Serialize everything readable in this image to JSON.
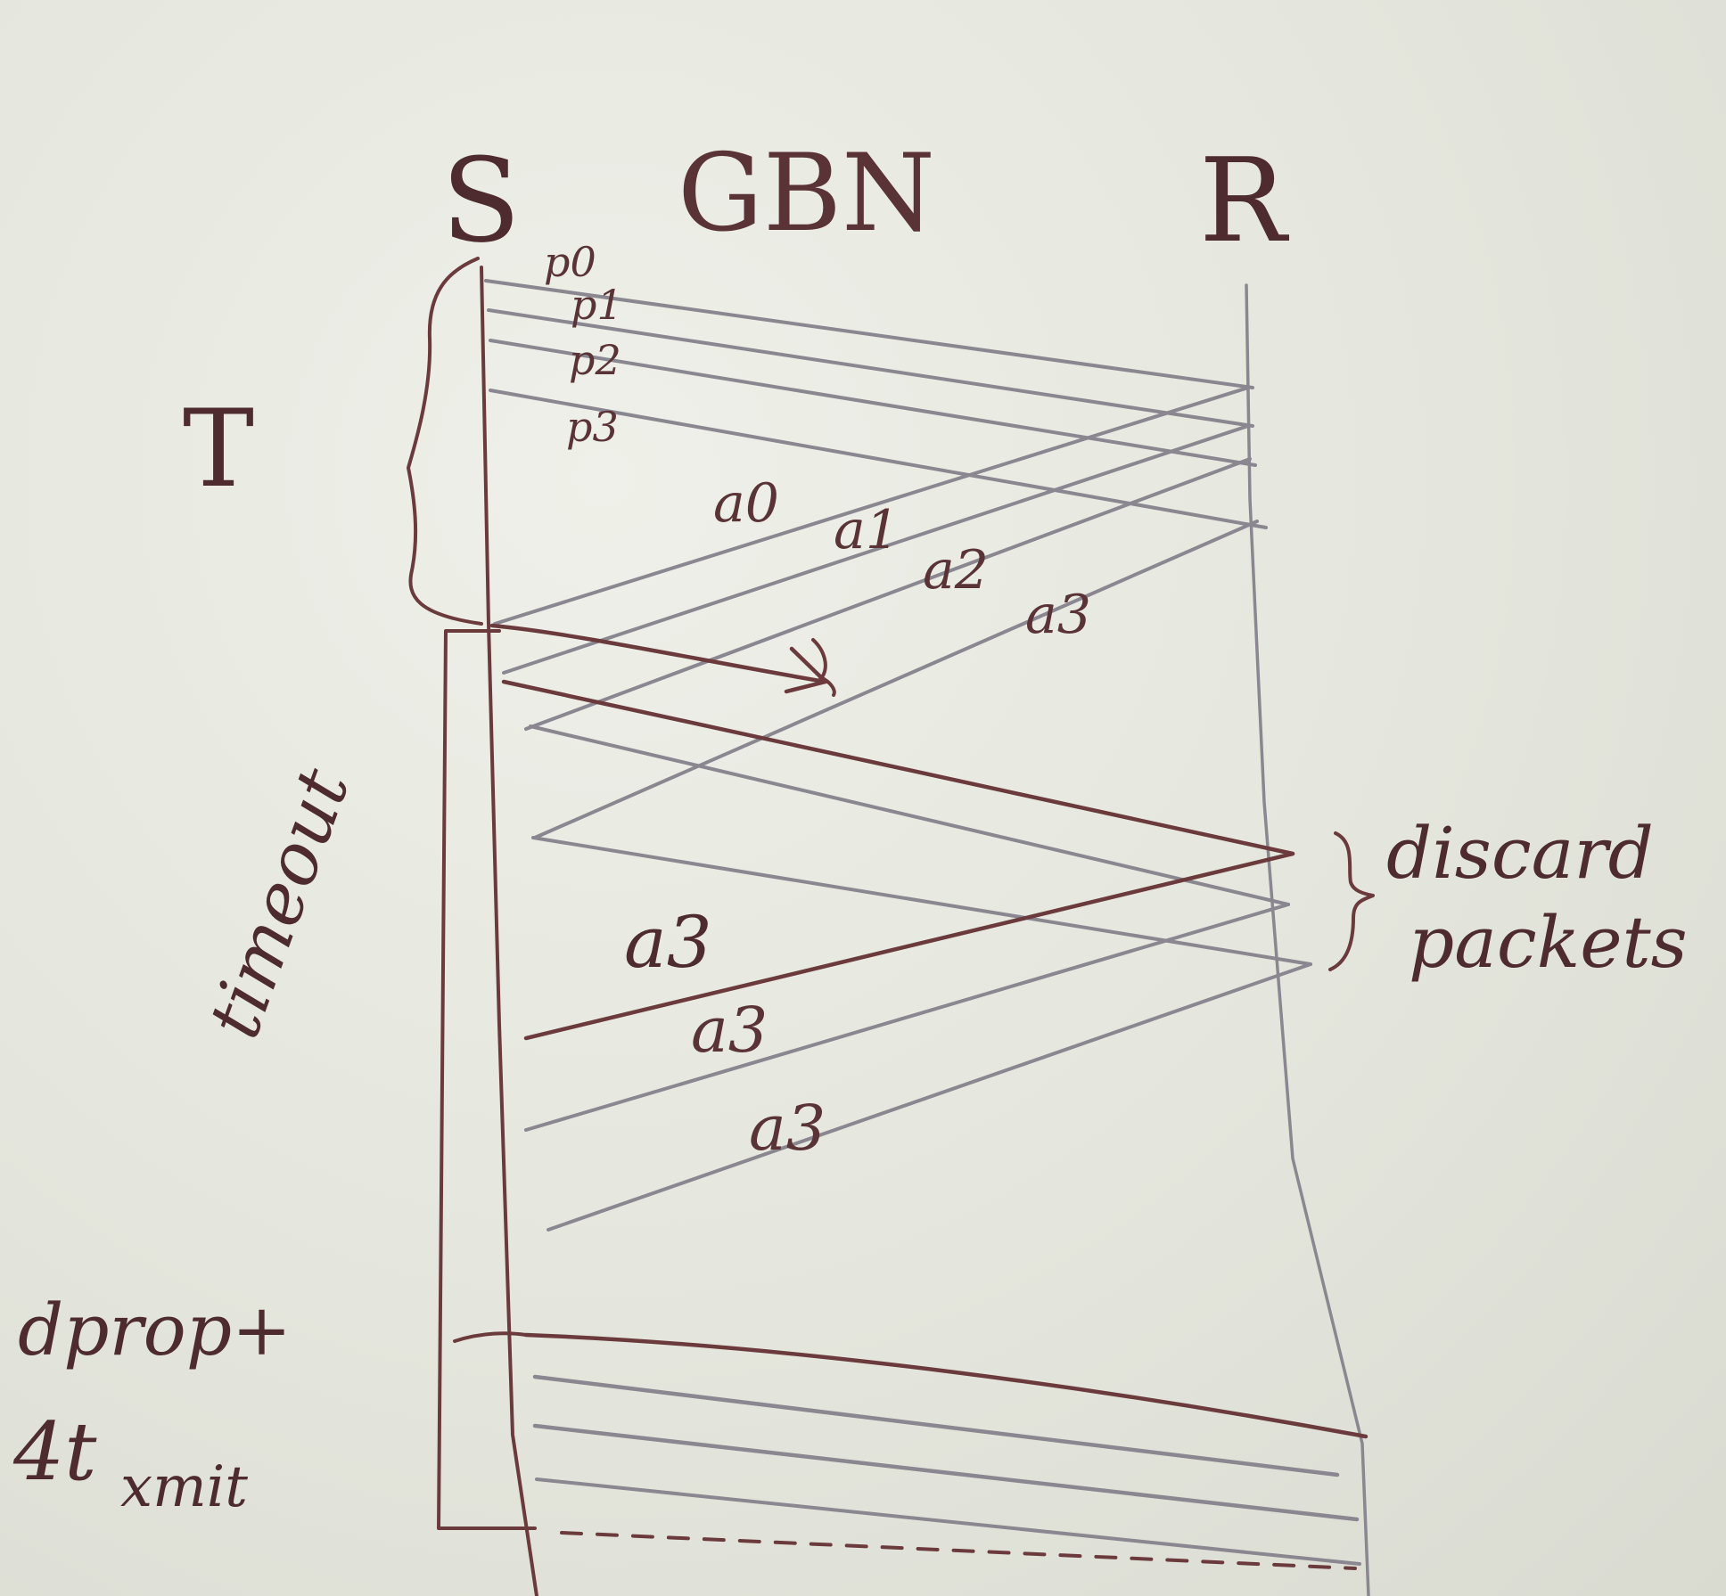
{
  "diagram": {
    "title": "GBN",
    "sender_label": "S",
    "receiver_label": "R",
    "interval_label": "T",
    "timeout_label": "timeout",
    "packets": [
      "p0",
      "p1",
      "p2",
      "p3"
    ],
    "acks": [
      "a0",
      "a1",
      "a2",
      "a3"
    ],
    "repeated_acks": [
      "a3",
      "a3",
      "a3"
    ],
    "discard_label_line1": "discard",
    "discard_label_line2": "packets",
    "bottom_label_line1": "dprop+",
    "bottom_label_line2": "4t",
    "bottom_label_sub": "xmit"
  }
}
